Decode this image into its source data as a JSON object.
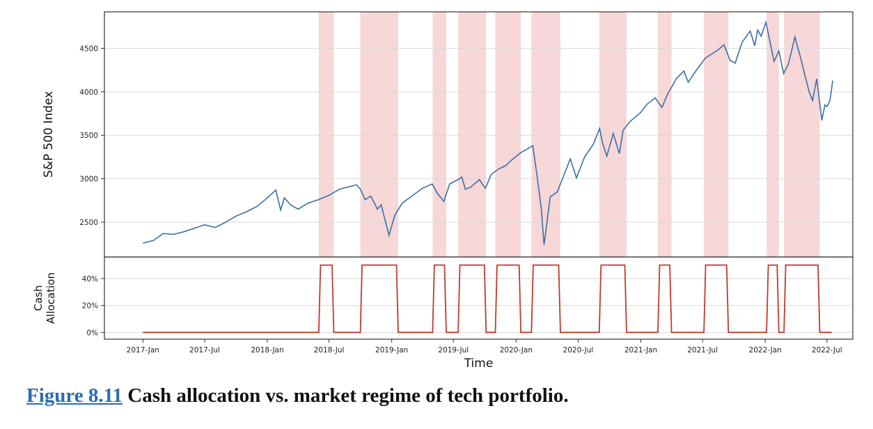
{
  "caption": {
    "figure_link": "Figure 8.11",
    "text": "Cash allocation vs. market regime of tech portfolio."
  },
  "colors": {
    "price_line": "#3a6ea8",
    "allocation_line": "#c0392b",
    "regime_band": "#f4c6c6",
    "grid": "#d9d9d9"
  },
  "chart_data": [
    {
      "type": "line",
      "panel": "top",
      "ylabel": "S&P 500 Index",
      "ylim": [
        2100,
        4920
      ],
      "yticks": [
        2500,
        3000,
        3500,
        4000,
        4500
      ],
      "ytick_labels": [
        "2500",
        "3000",
        "3500",
        "4000",
        "4500"
      ],
      "grid": true,
      "shaded_regimes": [
        [
          "2018-06-01",
          "2018-07-15"
        ],
        [
          "2018-10-01",
          "2019-01-20"
        ],
        [
          "2019-05-01",
          "2019-06-10"
        ],
        [
          "2019-07-15",
          "2019-10-05"
        ],
        [
          "2019-11-01",
          "2020-01-15"
        ],
        [
          "2020-02-15",
          "2020-05-10"
        ],
        [
          "2020-09-01",
          "2020-11-20"
        ],
        [
          "2021-02-20",
          "2021-04-01"
        ],
        [
          "2021-07-05",
          "2021-09-15"
        ],
        [
          "2022-01-05",
          "2022-02-10"
        ],
        [
          "2022-02-25",
          "2022-06-10"
        ]
      ],
      "series": [
        {
          "x": [
            "2017-01-01",
            "2017-02-01",
            "2017-03-01",
            "2017-04-01",
            "2017-05-01",
            "2017-06-01",
            "2017-07-01",
            "2017-08-01",
            "2017-09-01",
            "2017-10-01",
            "2017-11-01",
            "2017-12-01",
            "2018-01-01",
            "2018-01-26",
            "2018-02-09",
            "2018-02-20",
            "2018-03-10",
            "2018-04-01",
            "2018-05-01",
            "2018-06-01",
            "2018-07-01",
            "2018-08-01",
            "2018-09-20",
            "2018-10-01",
            "2018-10-15",
            "2018-11-01",
            "2018-11-20",
            "2018-12-01",
            "2018-12-24",
            "2019-01-10",
            "2019-02-01",
            "2019-03-01",
            "2019-04-01",
            "2019-04-30",
            "2019-05-15",
            "2019-06-03",
            "2019-06-20",
            "2019-07-15",
            "2019-07-26",
            "2019-08-05",
            "2019-08-20",
            "2019-09-15",
            "2019-10-03",
            "2019-10-20",
            "2019-11-10",
            "2019-12-01",
            "2019-12-20",
            "2020-01-15",
            "2020-02-19",
            "2020-03-02",
            "2020-03-15",
            "2020-03-23",
            "2020-04-10",
            "2020-05-01",
            "2020-06-08",
            "2020-06-26",
            "2020-07-20",
            "2020-08-15",
            "2020-09-02",
            "2020-09-10",
            "2020-09-23",
            "2020-10-12",
            "2020-10-30",
            "2020-11-10",
            "2020-12-01",
            "2020-12-31",
            "2021-01-20",
            "2021-02-12",
            "2021-03-04",
            "2021-03-20",
            "2021-04-15",
            "2021-05-07",
            "2021-05-20",
            "2021-06-15",
            "2021-07-10",
            "2021-08-15",
            "2021-09-02",
            "2021-09-20",
            "2021-10-05",
            "2021-10-25",
            "2021-11-18",
            "2021-12-01",
            "2021-12-10",
            "2021-12-20",
            "2022-01-03",
            "2022-01-27",
            "2022-02-10",
            "2022-02-24",
            "2022-03-10",
            "2022-03-29",
            "2022-04-15",
            "2022-04-28",
            "2022-05-10",
            "2022-05-20",
            "2022-06-01",
            "2022-06-16",
            "2022-06-25",
            "2022-07-01",
            "2022-07-10",
            "2022-07-18"
          ],
          "values": [
            2260,
            2290,
            2370,
            2360,
            2390,
            2430,
            2470,
            2440,
            2500,
            2570,
            2620,
            2680,
            2780,
            2870,
            2640,
            2780,
            2700,
            2650,
            2720,
            2760,
            2810,
            2880,
            2930,
            2880,
            2760,
            2800,
            2650,
            2700,
            2350,
            2580,
            2720,
            2800,
            2890,
            2940,
            2830,
            2740,
            2940,
            2990,
            3020,
            2880,
            2900,
            2990,
            2890,
            3050,
            3110,
            3150,
            3220,
            3300,
            3380,
            3050,
            2650,
            2240,
            2790,
            2850,
            3230,
            3010,
            3250,
            3400,
            3580,
            3420,
            3260,
            3520,
            3290,
            3560,
            3660,
            3760,
            3860,
            3930,
            3820,
            3970,
            4150,
            4240,
            4110,
            4260,
            4390,
            4480,
            4540,
            4360,
            4330,
            4570,
            4700,
            4530,
            4710,
            4640,
            4800,
            4350,
            4470,
            4210,
            4320,
            4630,
            4390,
            4180,
            4000,
            3900,
            4150,
            3670,
            3850,
            3830,
            3900,
            4130
          ]
        }
      ]
    },
    {
      "type": "line",
      "panel": "bottom",
      "ylabel": "Cash\nAllocation",
      "xlabel": "Time",
      "ylim": [
        -0.05,
        0.56
      ],
      "yticks": [
        0,
        0.2,
        0.4
      ],
      "ytick_labels": [
        "0%",
        "20%",
        "40%"
      ],
      "xticks": [
        "2017-01-01",
        "2017-07-01",
        "2018-01-01",
        "2018-07-01",
        "2019-01-01",
        "2019-07-01",
        "2020-01-01",
        "2020-07-01",
        "2021-01-01",
        "2021-07-01",
        "2022-01-01",
        "2022-07-01"
      ],
      "xtick_labels": [
        "2017-Jan",
        "2017-Jul",
        "2018-Jan",
        "2018-Jul",
        "2019-Jan",
        "2019-Jul",
        "2020-Jan",
        "2020-Jul",
        "2021-Jan",
        "2021-Jul",
        "2022-Jan",
        "2022-Jul"
      ],
      "grid": true,
      "series": [
        {
          "allocation_level": 0.5,
          "high_periods": [
            [
              "2018-06-01",
              "2018-07-15"
            ],
            [
              "2018-10-01",
              "2019-01-20"
            ],
            [
              "2019-05-01",
              "2019-06-10"
            ],
            [
              "2019-07-15",
              "2019-10-05"
            ],
            [
              "2019-11-01",
              "2020-01-15"
            ],
            [
              "2020-02-15",
              "2020-05-10"
            ],
            [
              "2020-09-01",
              "2020-11-20"
            ],
            [
              "2021-02-20",
              "2021-04-01"
            ],
            [
              "2021-07-05",
              "2021-09-15"
            ],
            [
              "2022-01-05",
              "2022-02-10"
            ],
            [
              "2022-02-25",
              "2022-06-10"
            ]
          ],
          "start": "2017-01-01",
          "end": "2022-07-15"
        }
      ]
    }
  ]
}
